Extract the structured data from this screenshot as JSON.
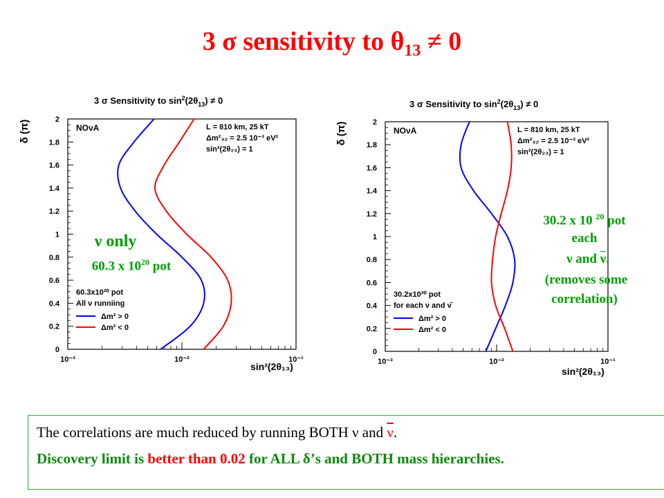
{
  "slide": {
    "title_pre": "3 σ sensitivity to θ",
    "title_sub": "13",
    "title_post": " ≠ 0"
  },
  "annotations": {
    "left_line1": "ν only",
    "left_line2_pre": "60.3 x 10",
    "left_line2_sup": "20",
    "left_line2_post": " pot",
    "right_line1_pre": "30.2 x 10 ",
    "right_line1_sup": "20",
    "right_line1_post": " pot",
    "right_line2": "each",
    "right_line3_a": "ν and ",
    "right_line3_b": "ν",
    "right_line3_c": ".",
    "right_line4": "(removes some",
    "right_line5": "correlation)"
  },
  "summary": {
    "line1_a": "The correlations are much reduced by running BOTH ν and ",
    "line1_b": "ν",
    "line1_c": ".",
    "line2_a": "Discovery limit is ",
    "line2_b": "better than 0.02",
    "line2_c": " for ALL δ’s and BOTH mass hierarchies."
  },
  "colors": {
    "title": "#ff0000",
    "annotation": "#00a000",
    "normal": "#0000ff",
    "inverted": "#ff0000"
  },
  "chart_data": [
    {
      "type": "line",
      "title_pre": "3 σ Sensitivity to sin",
      "title_sup": "2",
      "title_mid": "(2θ",
      "title_sub": "13",
      "title_post": ") ≠ 0",
      "experiment": "NOνA",
      "param_L": "L = 810 km, 25 kT",
      "param_dm": "Δm²₃₂ = 2.5 10⁻³ eV²",
      "param_s23": "sin²(2θ₂₃) = 1",
      "xlabel": "sin²(2θ₁₃)",
      "ylabel": "δ (π)",
      "x_log": true,
      "xlim": [
        0.001,
        0.1
      ],
      "ylim": [
        0,
        2
      ],
      "x_ticks": [
        "10⁻³",
        "10⁻²",
        "10⁻¹"
      ],
      "y_ticks": [
        "0",
        "0.2",
        "0.4",
        "0.6",
        "0.8",
        "1",
        "1.2",
        "1.4",
        "1.6",
        "1.8",
        "2"
      ],
      "legend_title1": "60.3x10²⁰ pot",
      "legend_title2": "All ν runniing",
      "series": [
        {
          "name": "Δm² > 0",
          "color": "#0000ff",
          "delta": [
            0,
            0.2,
            0.4,
            0.6,
            0.8,
            1.0,
            1.2,
            1.4,
            1.6,
            1.8,
            2.0
          ],
          "sin2": [
            0.0065,
            0.0118,
            0.0155,
            0.0148,
            0.01,
            0.006,
            0.0039,
            0.0029,
            0.0028,
            0.0038,
            0.0057
          ]
        },
        {
          "name": "Δm² < 0",
          "color": "#ff0000",
          "delta": [
            0,
            0.2,
            0.4,
            0.6,
            0.8,
            1.0,
            1.2,
            1.4,
            1.6,
            1.8,
            2.0
          ],
          "sin2": [
            0.0155,
            0.023,
            0.027,
            0.0252,
            0.018,
            0.011,
            0.0073,
            0.0058,
            0.007,
            0.0095,
            0.0128
          ]
        }
      ]
    },
    {
      "type": "line",
      "title_pre": "3 σ Sensitivity to sin",
      "title_sup": "2",
      "title_mid": "(2θ",
      "title_sub": "13",
      "title_post": ") ≠ 0",
      "experiment": "NOνA",
      "param_L": "L = 810 km, 25 kT",
      "param_dm": "Δm²₃₂ = 2.5 10⁻³ eV²",
      "param_s23": "sin²(2θ₂₃) = 1",
      "xlabel": "sin²(2θ₁₃)",
      "ylabel": "δ (π)",
      "x_log": true,
      "xlim": [
        0.001,
        0.1
      ],
      "ylim": [
        0,
        2
      ],
      "x_ticks": [
        "10⁻³",
        "10⁻²",
        "10⁻¹"
      ],
      "y_ticks": [
        "0",
        "0.2",
        "0.4",
        "0.6",
        "0.8",
        "1",
        "1.2",
        "1.4",
        "1.6",
        "1.8",
        "2"
      ],
      "legend_title1": "30.2x10²⁰ pot",
      "legend_title2": "for each ν and ν̄",
      "series": [
        {
          "name": "Δm² > 0",
          "color": "#0000ff",
          "delta": [
            0,
            0.2,
            0.4,
            0.6,
            0.8,
            1.0,
            1.2,
            1.4,
            1.6,
            1.8,
            2.0
          ],
          "sin2": [
            0.008,
            0.0098,
            0.012,
            0.014,
            0.0145,
            0.0125,
            0.009,
            0.0062,
            0.0048,
            0.0048,
            0.0057
          ]
        },
        {
          "name": "Δm² < 0",
          "color": "#ff0000",
          "delta": [
            0,
            0.2,
            0.4,
            0.6,
            0.8,
            1.0,
            1.2,
            1.4,
            1.6,
            1.8,
            2.0
          ],
          "sin2": [
            0.014,
            0.0118,
            0.0098,
            0.009,
            0.0092,
            0.0098,
            0.011,
            0.0125,
            0.0135,
            0.0135,
            0.0125
          ]
        }
      ]
    }
  ]
}
